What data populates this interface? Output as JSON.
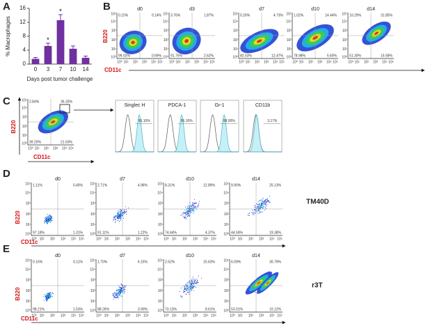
{
  "chart_data": {
    "type": "bar",
    "panel": "A",
    "ylabel": "% Macrophages",
    "xlabel": "Days post tumor challenge",
    "categories": [
      "0",
      "3",
      "7",
      "10",
      "14"
    ],
    "values": [
      1.5,
      5.2,
      12.6,
      4.4,
      1.8
    ],
    "errors": [
      0.4,
      0.8,
      1.6,
      0.8,
      0.5
    ],
    "color": "#7030a0",
    "ylim": [
      0,
      16
    ],
    "yticks": [
      0,
      4,
      8,
      12,
      16
    ],
    "annotations": [
      {
        "x": "3",
        "text": "*"
      },
      {
        "x": "7",
        "text": "*"
      }
    ]
  },
  "tick_labels": [
    "10⁰",
    "10¹",
    "10²",
    "10³",
    "10⁴",
    "10⁵"
  ],
  "panels": {
    "B": {
      "label": "B",
      "x_axis": "CD11c",
      "y_axis": "B220",
      "plots": [
        {
          "title": "d0",
          "quadrants": [
            "0.15%",
            "0.14%",
            "99.02%",
            "0.69%"
          ]
        },
        {
          "title": "d3",
          "quadrants": [
            "3.76%",
            "1.87%",
            "91.75%",
            "2.62%"
          ]
        },
        {
          "title": "d7",
          "quadrants": [
            "0.26%",
            "4.73%",
            "82.53%",
            "12.47%"
          ]
        },
        {
          "title": "d10",
          "quadrants": [
            "1.02%",
            "14.44%",
            "78.98%",
            "5.60%"
          ]
        },
        {
          "title": "d14",
          "quadrants": [
            "10.29%",
            "31.85%",
            "51.30%",
            "15.58%"
          ]
        }
      ]
    },
    "C": {
      "label": "C",
      "x_axis": "CD11c",
      "y_axis": "B220",
      "plot": {
        "quadrants": [
          "2.84%",
          "36.33%",
          "39.20%",
          "21.63%"
        ]
      },
      "histograms": [
        {
          "title": "Singlec H",
          "percent": "96.10%"
        },
        {
          "title": "PDCA-1",
          "percent": "95.10%"
        },
        {
          "title": "Gr-1",
          "percent": "98.00%"
        },
        {
          "title": "CD11b",
          "percent": "3.17%"
        }
      ]
    },
    "D": {
      "label": "D",
      "name": "TM40D",
      "x_axis": "CD11c",
      "y_axis": "B220",
      "plots": [
        {
          "title": "d0",
          "quadrants": [
            "1.11%",
            "0.40%",
            "97.18%",
            "1.31%"
          ]
        },
        {
          "title": "d7",
          "quadrants": [
            "2.71%",
            "4.96%",
            "91.11%",
            "1.22%"
          ]
        },
        {
          "title": "d10",
          "quadrants": [
            "8.31%",
            "12.89%",
            "74.44%",
            "4.37%"
          ]
        },
        {
          "title": "d14",
          "quadrants": [
            "9.90%",
            "25.13%",
            "44.59%",
            "19.38%"
          ]
        }
      ]
    },
    "E": {
      "label": "E",
      "name": "r3T",
      "x_axis": "CD11c",
      "y_axis": "B220",
      "plots": [
        {
          "title": "d0",
          "quadrants": [
            "0.16%",
            "0.11%",
            "98.21%",
            "1.53%"
          ]
        },
        {
          "title": "d7",
          "quadrants": [
            "1.70%",
            "6.15%",
            "88.26%",
            "3.90%"
          ]
        },
        {
          "title": "d10",
          "quadrants": [
            "2.62%",
            "15.63%",
            "73.13%",
            "8.61%"
          ]
        },
        {
          "title": "d14",
          "quadrants": [
            "6.09%",
            "30.79%",
            "53.01%",
            "10.12%"
          ]
        }
      ]
    }
  }
}
